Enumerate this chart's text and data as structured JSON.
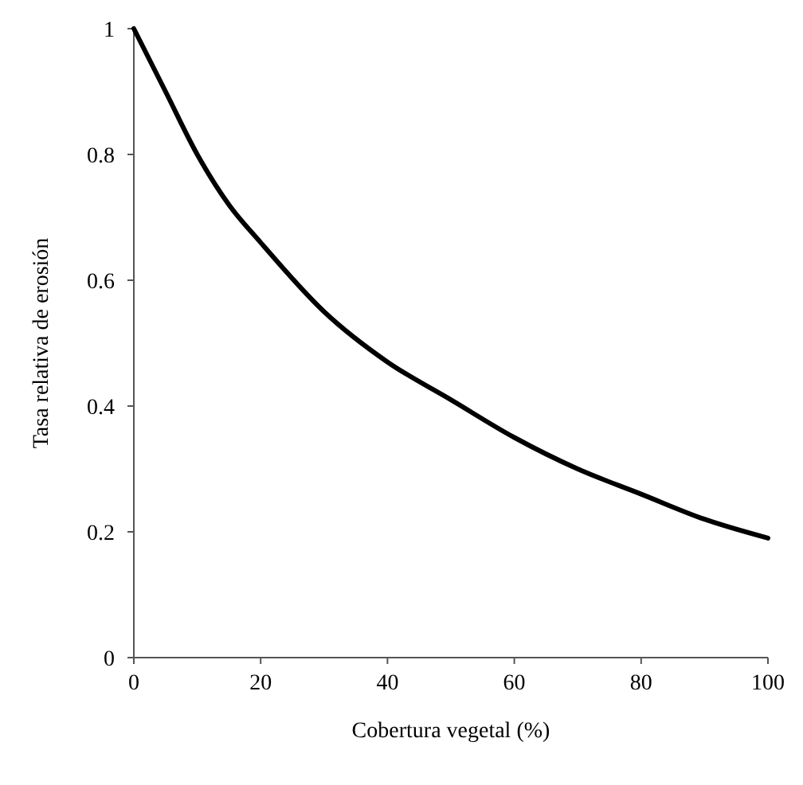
{
  "chart_data": {
    "type": "line",
    "xlabel": "Cobertura vegetal (%)",
    "ylabel": "Tasa relativa de erosión",
    "x": [
      0,
      5,
      10,
      15,
      20,
      30,
      40,
      50,
      60,
      70,
      80,
      90,
      100
    ],
    "series": [
      {
        "color": "#000000",
        "values": [
          1,
          0.9,
          0.8,
          0.72,
          0.66,
          0.55,
          0.47,
          0.41,
          0.35,
          0.3,
          0.26,
          0.22,
          0.19
        ]
      }
    ],
    "xlim": [
      0,
      100
    ],
    "xticks": [
      0,
      20,
      40,
      60,
      80,
      100
    ],
    "ylim": [
      0,
      1
    ],
    "yticks": [
      0,
      0.2,
      0.4,
      0.6,
      0.8,
      1
    ],
    "marker": "none",
    "line_style": "solid"
  }
}
